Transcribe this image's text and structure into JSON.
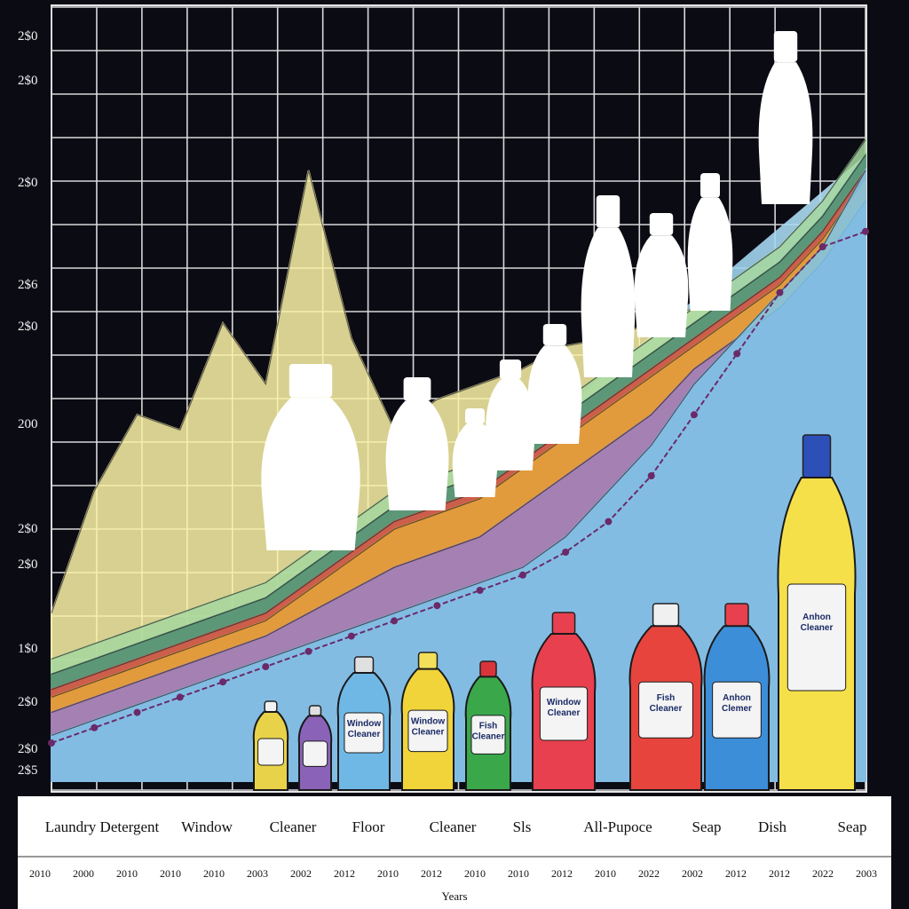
{
  "chart_data": {
    "type": "area",
    "title": "",
    "xlabel": "Years",
    "ylabel": "",
    "y_tick_labels": [
      "2$0",
      "2$0",
      "2$0",
      "2$6",
      "2$0",
      "200",
      "2$0",
      "2$0",
      "1$0",
      "2$0",
      "2$0",
      "2$5"
    ],
    "categories": [
      "Laundry Detergent",
      "Window",
      "Cleaner",
      "Floor",
      "Cleaner",
      "Sls",
      "All-Pupoce",
      "Seap",
      "Dish",
      "Seap"
    ],
    "x_tick_labels": [
      "2010",
      "2000",
      "2010",
      "2010",
      "2010",
      "2003",
      "2002",
      "2012",
      "2010",
      "2012",
      "2010",
      "2010",
      "2012",
      "2010",
      "2022",
      "2002",
      "2012",
      "2012",
      "2022",
      "2003"
    ],
    "ylim": [
      0,
      100
    ],
    "grid": true,
    "legend": "none",
    "x": [
      0,
      1,
      2,
      3,
      4,
      5,
      6,
      7,
      8,
      9,
      10,
      11,
      12,
      13,
      14,
      15,
      16,
      17,
      18,
      19
    ],
    "series": [
      {
        "color": "#fbf3a6",
        "values": [
          22,
          38,
          48,
          46,
          60,
          52,
          80,
          58,
          46,
          50,
          52,
          54,
          57,
          58,
          60,
          62,
          64,
          68,
          72,
          80
        ]
      },
      {
        "color": "#a6d8a0",
        "values": [
          16,
          18,
          20,
          22,
          24,
          26,
          30,
          34,
          38,
          40,
          42,
          46,
          50,
          54,
          58,
          62,
          66,
          70,
          76,
          84
        ]
      },
      {
        "color": "#4e8d72",
        "values": [
          14,
          16,
          18,
          20,
          22,
          24,
          28,
          32,
          36,
          38,
          40,
          44,
          48,
          52,
          56,
          60,
          64,
          68,
          74,
          82
        ]
      },
      {
        "color": "#e05545",
        "values": [
          12,
          14,
          16,
          18,
          20,
          22,
          26,
          30,
          34,
          36,
          38,
          42,
          46,
          50,
          54,
          58,
          62,
          66,
          72,
          80
        ]
      },
      {
        "color": "#e6a63a",
        "values": [
          11,
          13,
          15,
          17,
          19,
          21,
          25,
          29,
          33,
          35,
          37,
          41,
          45,
          49,
          53,
          57,
          61,
          65,
          71,
          79
        ]
      },
      {
        "color": "#9a7cc8",
        "values": [
          9,
          11,
          13,
          15,
          17,
          19,
          22,
          25,
          28,
          30,
          32,
          36,
          40,
          44,
          48,
          54,
          58,
          62,
          68,
          76
        ]
      },
      {
        "color": "#7ec7ec",
        "values": [
          6,
          8,
          10,
          12,
          14,
          16,
          18,
          20,
          22,
          24,
          26,
          28,
          32,
          38,
          44,
          52,
          58,
          64,
          70,
          80
        ]
      }
    ],
    "marker_series": {
      "color": "#6a2a6a",
      "values": [
        5,
        7,
        9,
        11,
        13,
        15,
        17,
        19,
        21,
        23,
        25,
        27,
        30,
        34,
        40,
        48,
        56,
        64,
        70,
        72
      ]
    }
  },
  "bottles": [
    {
      "color": "#e8d24a",
      "cap": "#f2f2f2",
      "label": ""
    },
    {
      "color": "#8a63b8",
      "cap": "#e0e0e0",
      "label": ""
    },
    {
      "color": "#6fb8e6",
      "cap": "#e0e0e0",
      "label": "Window Cleaner"
    },
    {
      "color": "#f0d43a",
      "cap": "#f2e05a",
      "label": "Window Cleaner"
    },
    {
      "color": "#3aa84a",
      "cap": "#d8343a",
      "label": "Fish Cleaner"
    },
    {
      "color": "#e8404e",
      "cap": "#e8404e",
      "label": "Window Cleaner"
    },
    {
      "color": "#e8443e",
      "cap": "#f0f0f0",
      "label": "Fish Cleaner"
    },
    {
      "color": "#3d8ed8",
      "cap": "#e8404e",
      "label": "Anhon Clemer"
    },
    {
      "color": "#f6e04a",
      "cap": "#2d4fb8",
      "label": "Anhon Cleaner"
    }
  ]
}
